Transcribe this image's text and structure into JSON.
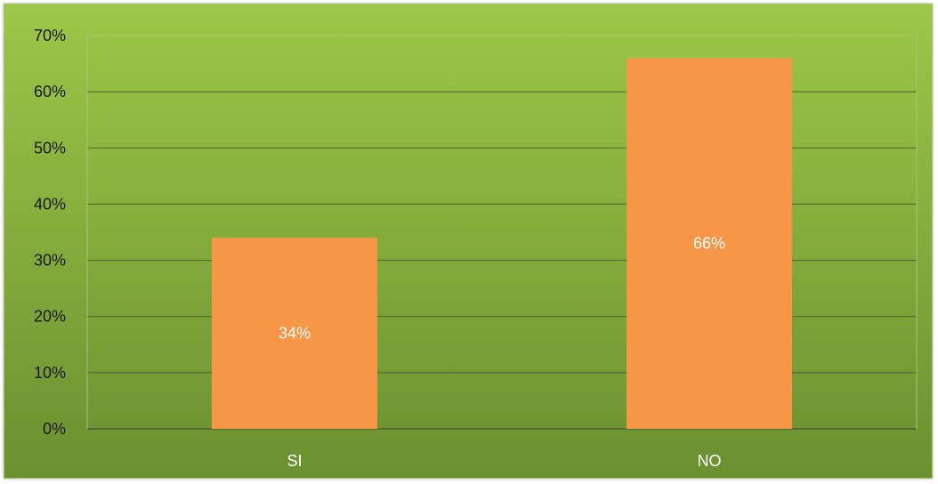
{
  "chart_data": {
    "type": "bar",
    "categories": [
      "SI",
      "NO"
    ],
    "values": [
      34,
      66
    ],
    "data_labels": [
      "34%",
      "66%"
    ],
    "y_tick_labels": [
      "0%",
      "10%",
      "20%",
      "30%",
      "40%",
      "50%",
      "60%",
      "70%"
    ],
    "ylim": [
      0,
      70
    ],
    "y_unit": "%",
    "grid": true,
    "legend": "none",
    "colors": {
      "bar": "#f79646",
      "gridline": "#4d5f30",
      "background_top": "#9cc747",
      "background_bottom": "#6a9030"
    }
  }
}
